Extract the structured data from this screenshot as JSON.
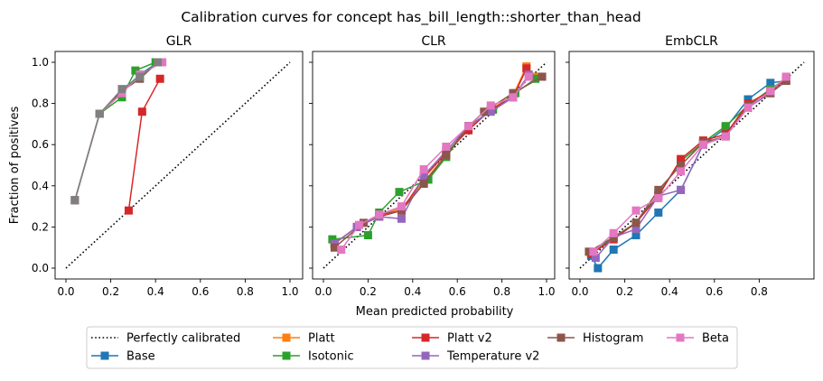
{
  "figure": {
    "title": "Calibration curves for concept has_bill_length::shorter_than_head",
    "xlabel": "Mean predicted probability",
    "ylabel": "Fraction of positives"
  },
  "colors": {
    "Base": "#1f77b4",
    "Platt": "#ff7f0e",
    "Isotonic": "#2ca02c",
    "Platt v2": "#d62728",
    "Temperature v2": "#9467bd",
    "Histogram": "#8c564b",
    "Beta": "#e377c2",
    "GLR_extra": "#7f7f7f"
  },
  "legend": {
    "entries": [
      {
        "label": "Perfectly calibrated",
        "kind": "dotted",
        "color": "#000000"
      },
      {
        "label": "Base",
        "kind": "marker",
        "color": "#1f77b4"
      },
      {
        "label": "Platt",
        "kind": "marker",
        "color": "#ff7f0e"
      },
      {
        "label": "Isotonic",
        "kind": "marker",
        "color": "#2ca02c"
      },
      {
        "label": "Platt v2",
        "kind": "marker",
        "color": "#d62728"
      },
      {
        "label": "Temperature v2",
        "kind": "marker",
        "color": "#9467bd"
      },
      {
        "label": "Histogram",
        "kind": "marker",
        "color": "#8c564b"
      },
      {
        "label": "Beta",
        "kind": "marker",
        "color": "#e377c2"
      }
    ]
  },
  "chart_data": [
    {
      "type": "line",
      "title": "GLR",
      "xlim": [
        0,
        1
      ],
      "ylim": [
        0,
        1
      ],
      "xticks": [
        "0.0",
        "0.2",
        "0.4",
        "0.6",
        "0.8",
        "1.0"
      ],
      "yticks": [
        "0.0",
        "0.2",
        "0.4",
        "0.6",
        "0.8",
        "1.0"
      ],
      "series": [
        {
          "name": "Platt v2",
          "color": "#d62728",
          "x": [
            0.28,
            0.34,
            0.42
          ],
          "y": [
            0.28,
            0.76,
            0.92
          ]
        },
        {
          "name": "Base",
          "color": "#1f77b4",
          "x": [
            0.04,
            0.15,
            0.25,
            0.33,
            0.41
          ],
          "y": [
            0.33,
            0.75,
            0.86,
            0.94,
            1.0
          ]
        },
        {
          "name": "Isotonic",
          "color": "#2ca02c",
          "x": [
            0.04,
            0.15,
            0.25,
            0.31,
            0.4
          ],
          "y": [
            0.33,
            0.75,
            0.83,
            0.96,
            1.0
          ]
        },
        {
          "name": "Histogram",
          "color": "#8c564b",
          "x": [
            0.04,
            0.15,
            0.25,
            0.33,
            0.41
          ],
          "y": [
            0.33,
            0.75,
            0.86,
            0.92,
            1.0
          ]
        },
        {
          "name": "Beta",
          "color": "#e377c2",
          "x": [
            0.04,
            0.15,
            0.25,
            0.33,
            0.43
          ],
          "y": [
            0.33,
            0.75,
            0.85,
            0.94,
            1.0
          ]
        },
        {
          "name": "",
          "color": "#7f7f7f",
          "x": [
            0.04,
            0.15,
            0.25,
            0.33,
            0.41
          ],
          "y": [
            0.33,
            0.75,
            0.87,
            0.93,
            1.0
          ]
        }
      ]
    },
    {
      "type": "line",
      "title": "CLR",
      "xlim": [
        0,
        1
      ],
      "ylim": [
        0,
        1
      ],
      "xticks": [
        "0.0",
        "0.2",
        "0.4",
        "0.6",
        "0.8",
        "1.0"
      ],
      "yticks": [],
      "series": [
        {
          "name": "Platt",
          "color": "#ff7f0e",
          "x": [
            0.05,
            0.15,
            0.25,
            0.35,
            0.45,
            0.55,
            0.65,
            0.75,
            0.85,
            0.91,
            0.95
          ],
          "y": [
            0.12,
            0.2,
            0.26,
            0.29,
            0.42,
            0.55,
            0.68,
            0.77,
            0.84,
            0.98,
            0.93
          ]
        },
        {
          "name": "Isotonic",
          "color": "#2ca02c",
          "x": [
            0.04,
            0.2,
            0.25,
            0.34,
            0.47,
            0.55,
            0.65,
            0.76,
            0.86,
            0.95
          ],
          "y": [
            0.14,
            0.16,
            0.27,
            0.37,
            0.43,
            0.54,
            0.69,
            0.77,
            0.85,
            0.92
          ]
        },
        {
          "name": "Platt v2",
          "color": "#d62728",
          "x": [
            0.05,
            0.15,
            0.25,
            0.35,
            0.45,
            0.55,
            0.65,
            0.75,
            0.85,
            0.91
          ],
          "y": [
            0.12,
            0.2,
            0.25,
            0.28,
            0.44,
            0.56,
            0.67,
            0.77,
            0.83,
            0.97
          ]
        },
        {
          "name": "Temperature v2",
          "color": "#9467bd",
          "x": [
            0.05,
            0.15,
            0.25,
            0.35,
            0.45,
            0.55,
            0.65,
            0.75,
            0.85,
            0.92
          ],
          "y": [
            0.12,
            0.2,
            0.25,
            0.24,
            0.45,
            0.57,
            0.69,
            0.76,
            0.83,
            0.94
          ]
        },
        {
          "name": "Histogram",
          "color": "#8c564b",
          "x": [
            0.05,
            0.18,
            0.25,
            0.35,
            0.45,
            0.55,
            0.65,
            0.72,
            0.85,
            0.98
          ],
          "y": [
            0.1,
            0.22,
            0.26,
            0.28,
            0.41,
            0.55,
            0.69,
            0.76,
            0.85,
            0.93
          ]
        },
        {
          "name": "Beta",
          "color": "#e377c2",
          "x": [
            0.08,
            0.16,
            0.25,
            0.35,
            0.45,
            0.55,
            0.65,
            0.75,
            0.85,
            0.92
          ],
          "y": [
            0.09,
            0.21,
            0.26,
            0.3,
            0.48,
            0.59,
            0.69,
            0.79,
            0.83,
            0.93
          ]
        }
      ]
    },
    {
      "type": "line",
      "title": "EmbCLR",
      "xlim": [
        0,
        1
      ],
      "ylim": [
        0,
        1
      ],
      "xticks": [
        "0.0",
        "0.2",
        "0.4",
        "0.6",
        "0.8"
      ],
      "yticks": [],
      "series": [
        {
          "name": "Base",
          "color": "#1f77b4",
          "x": [
            0.05,
            0.08,
            0.15,
            0.25,
            0.35,
            0.45,
            0.55,
            0.65,
            0.75,
            0.85,
            0.92
          ],
          "y": [
            0.06,
            0.0,
            0.09,
            0.16,
            0.27,
            0.38,
            0.6,
            0.68,
            0.82,
            0.9,
            0.91
          ]
        },
        {
          "name": "Isotonic",
          "color": "#2ca02c",
          "x": [
            0.05,
            0.15,
            0.25,
            0.35,
            0.45,
            0.55,
            0.65,
            0.75,
            0.85,
            0.92
          ],
          "y": [
            0.07,
            0.15,
            0.22,
            0.36,
            0.52,
            0.61,
            0.69,
            0.79,
            0.87,
            0.92
          ]
        },
        {
          "name": "Platt v2",
          "color": "#d62728",
          "x": [
            0.05,
            0.15,
            0.25,
            0.35,
            0.45,
            0.55,
            0.65,
            0.75,
            0.85,
            0.92
          ],
          "y": [
            0.07,
            0.14,
            0.22,
            0.35,
            0.53,
            0.62,
            0.65,
            0.8,
            0.86,
            0.92
          ]
        },
        {
          "name": "Temperature v2",
          "color": "#9467bd",
          "x": [
            0.07,
            0.15,
            0.25,
            0.35,
            0.45,
            0.55,
            0.65,
            0.75,
            0.85,
            0.92
          ],
          "y": [
            0.05,
            0.15,
            0.19,
            0.35,
            0.38,
            0.6,
            0.64,
            0.78,
            0.85,
            0.91
          ]
        },
        {
          "name": "Histogram",
          "color": "#8c564b",
          "x": [
            0.04,
            0.15,
            0.25,
            0.35,
            0.45,
            0.55,
            0.65,
            0.75,
            0.85,
            0.92
          ],
          "y": [
            0.08,
            0.15,
            0.22,
            0.38,
            0.5,
            0.61,
            0.64,
            0.79,
            0.85,
            0.91
          ]
        },
        {
          "name": "Beta",
          "color": "#e377c2",
          "x": [
            0.06,
            0.15,
            0.25,
            0.35,
            0.45,
            0.55,
            0.65,
            0.75,
            0.85,
            0.92
          ],
          "y": [
            0.08,
            0.17,
            0.28,
            0.34,
            0.47,
            0.6,
            0.64,
            0.78,
            0.86,
            0.93
          ]
        }
      ]
    }
  ]
}
